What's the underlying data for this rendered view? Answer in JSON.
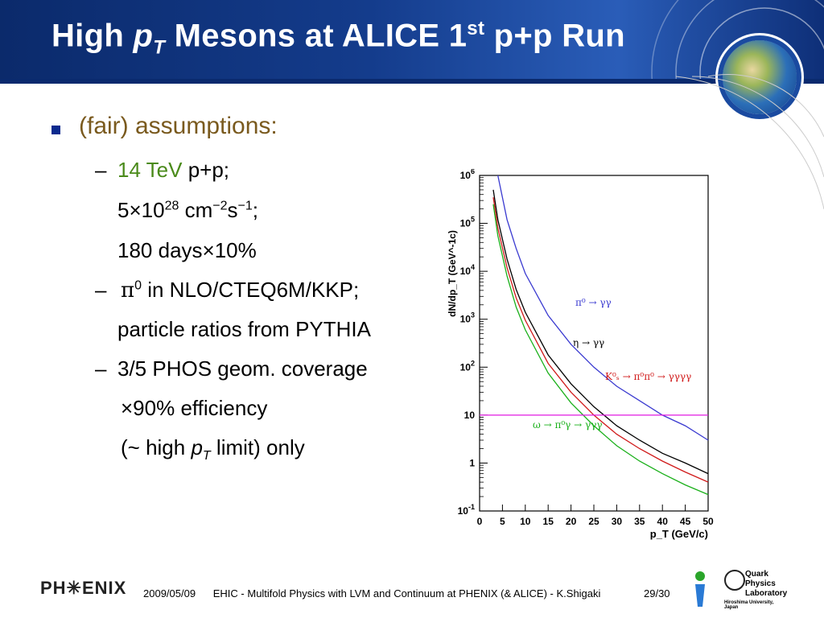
{
  "title": {
    "pre": "High ",
    "p": "p",
    "sub": "T",
    "mid": " Mesons at ALICE 1",
    "sup": "st",
    "post": " p+p Run"
  },
  "bullets": {
    "main": "(fair) assumptions:",
    "l1_green": "14 TeV",
    "l1_rest": " p+p;",
    "l2_a": "5×10",
    "l2_sup1": "28",
    "l2_b": " cm",
    "l2_sup2": "−2",
    "l2_c": "s",
    "l2_sup3": "−1",
    "l2_d": ";",
    "l3": "180 days×10%",
    "l4_pi": "π",
    "l4_sup": "0",
    "l4_rest": " in NLO/CTEQ6M/KKP;",
    "l5": "particle ratios from PYTHIA",
    "l6": "3/5 PHOS geom. coverage",
    "l7": "×90% efficiency",
    "l8_a": "(~ high ",
    "l8_p": "p",
    "l8_sub": "T",
    "l8_b": " limit) only",
    "dash": "–"
  },
  "chart_data": {
    "type": "line",
    "xlabel": "p_T (GeV/c)",
    "ylabel": "dN/dp_T (GeV^-1c)",
    "xlim": [
      0,
      50
    ],
    "ylim": [
      0.1,
      1000000
    ],
    "yscale": "log",
    "x_ticks": [
      "0",
      "5",
      "10",
      "15",
      "20",
      "25",
      "30",
      "35",
      "40",
      "45",
      "50"
    ],
    "y_ticks": [
      "10^-1",
      "1",
      "10",
      "10^2",
      "10^3",
      "10^4",
      "10^5",
      "10^6"
    ],
    "series": [
      {
        "name": "π⁰ → γγ",
        "color": "#3a3ad0",
        "x": [
          4,
          6,
          8,
          10,
          15,
          20,
          25,
          30,
          35,
          40,
          45,
          50
        ],
        "y": [
          1000000,
          120000,
          30000,
          9000,
          1200,
          300,
          100,
          40,
          20,
          10,
          6,
          3
        ]
      },
      {
        "name": "η → γγ",
        "color": "#000000",
        "x": [
          3,
          4,
          6,
          8,
          10,
          15,
          20,
          25,
          30,
          35,
          40,
          45,
          50
        ],
        "y": [
          500000,
          120000,
          18000,
          4200,
          1400,
          180,
          45,
          15,
          6,
          3,
          1.6,
          1.0,
          0.6
        ]
      },
      {
        "name": "K⁰ₛ → π⁰π⁰ → γγγγ",
        "color": "#d01a1a",
        "x": [
          3,
          4,
          6,
          8,
          10,
          15,
          20,
          25,
          30,
          35,
          40,
          45,
          50
        ],
        "y": [
          350000,
          80000,
          12000,
          2800,
          950,
          120,
          30,
          10,
          4,
          2,
          1.1,
          0.65,
          0.4
        ]
      },
      {
        "name": "ω → π⁰γ → γγγ",
        "color": "#1ab01a",
        "x": [
          3,
          4,
          6,
          8,
          10,
          15,
          20,
          25,
          30,
          35,
          40,
          45,
          50
        ],
        "y": [
          250000,
          55000,
          8000,
          1800,
          600,
          75,
          18,
          6,
          2.3,
          1.1,
          0.6,
          0.35,
          0.22
        ]
      },
      {
        "name": "",
        "color": "#e01ae0",
        "x": [
          0,
          50
        ],
        "y": [
          10,
          10
        ]
      }
    ],
    "legend_labels": [
      {
        "text": "π⁰ → γγ",
        "color": "#3a3ad0"
      },
      {
        "text": "η → γγ",
        "color": "#000000"
      },
      {
        "text": "K⁰ₛ → π⁰π⁰ → γγγγ",
        "color": "#d01a1a"
      },
      {
        "text": "ω → π⁰γ → γγγ",
        "color": "#1ab01a"
      }
    ]
  },
  "footer": {
    "logo": "PH✳ENIX",
    "date": "2009/05/09",
    "text": "EHIC - Multifold Physics with LVM and Continuum at PHENIX (& ALICE) - K.Shigaki",
    "page": "29/30",
    "qpl1": "Quark",
    "qpl2": "Physics",
    "qpl3": "Laboratory",
    "qpl4": "Hiroshima University, Japan"
  }
}
